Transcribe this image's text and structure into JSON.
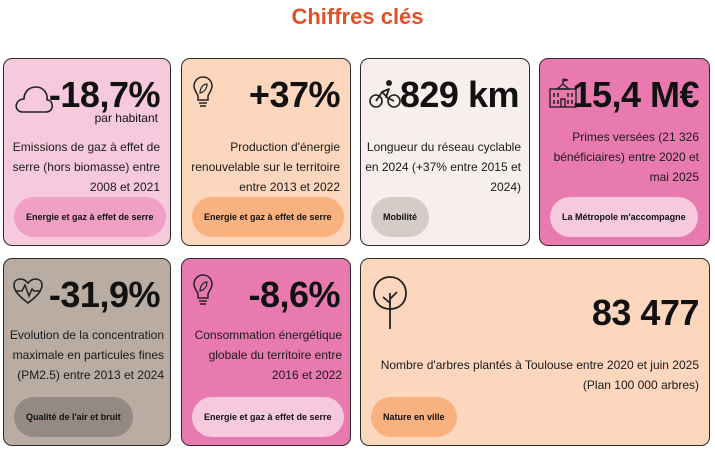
{
  "page": {
    "title": "Chiffres clés"
  },
  "colors": {
    "title": "#e0502a",
    "pink_light": "#f7c9dd",
    "peach": "#fcd7bd",
    "cream": "#f6efec",
    "pink_dark": "#e87ab0",
    "taupe": "#b8aca3"
  },
  "cards": [
    {
      "icon": "cloud-icon",
      "value": "-18,7%",
      "sub": "par habitant",
      "desc": "Emissions de gaz à effet de serre (hors biomasse) entre 2008 et 2021",
      "tag": "Energie et gaz à effet de serre"
    },
    {
      "icon": "lightbulb-leaf-icon",
      "value": "+37%",
      "desc": "Production d'énergie renouvelable sur le territoire entre 2013 et 2022",
      "tag": "Energie et gaz à effet de serre"
    },
    {
      "icon": "cyclist-icon",
      "value": "829 km",
      "desc": "Longueur du réseau cyclable en 2024 (+37% entre 2015 et 2024)",
      "tag": "Mobilité"
    },
    {
      "icon": "town-hall-icon",
      "value": "15,4 M€",
      "desc": "Primes versées (21 326 bénéficiaires) entre 2020 et mai 2025",
      "tag": "La Métropole m'accompagne"
    },
    {
      "icon": "heart-pulse-icon",
      "value": "-31,9%",
      "desc": "Evolution de la concentration maximale en particules fines (PM2.5) entre 2013 et 2024",
      "tag": "Qualité de l'air et bruit"
    },
    {
      "icon": "lightbulb-leaf-icon",
      "value": "-8,6%",
      "desc": "Consommation énergétique globale du territoire entre 2016 et 2022",
      "tag": "Energie et gaz à effet de serre"
    },
    {
      "icon": "tree-icon",
      "value": "83 477",
      "desc": "Nombre d'arbres plantés à Toulouse entre 2020 et juin 2025 (Plan 100 000 arbres)",
      "tag": "Nature en ville"
    }
  ]
}
